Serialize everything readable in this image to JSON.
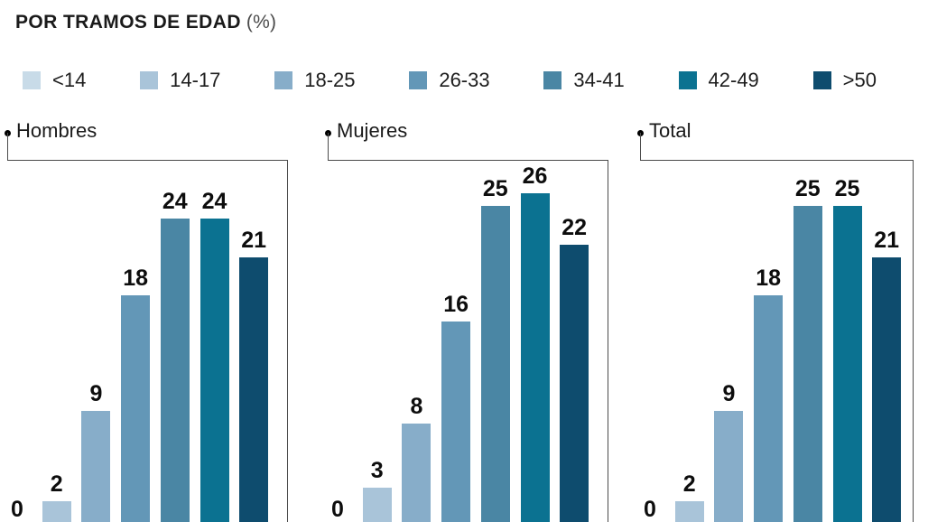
{
  "title": {
    "main": "POR TRAMOS DE EDAD",
    "suffix": " (%)"
  },
  "legend": [
    {
      "label": "<14",
      "color": "#c8dbe8"
    },
    {
      "label": "14-17",
      "color": "#a9c4d9"
    },
    {
      "label": "18-25",
      "color": "#87adc9"
    },
    {
      "label": "26-33",
      "color": "#6397b7"
    },
    {
      "label": "34-41",
      "color": "#4a86a4"
    },
    {
      "label": "42-49",
      "color": "#0b7291"
    },
    {
      "label": ">50",
      "color": "#0e4c6e"
    }
  ],
  "chart_data": {
    "type": "bar",
    "title": "POR TRAMOS DE EDAD (%)",
    "unit": "%",
    "categories": [
      "<14",
      "14-17",
      "18-25",
      "26-33",
      "34-41",
      "42-49",
      ">50"
    ],
    "series": [
      {
        "name": "Hombres",
        "values": [
          0,
          2,
          9,
          18,
          24,
          24,
          21
        ]
      },
      {
        "name": "Mujeres",
        "values": [
          0,
          3,
          8,
          16,
          25,
          26,
          22
        ]
      },
      {
        "name": "Total",
        "values": [
          0,
          2,
          9,
          18,
          25,
          25,
          21
        ]
      }
    ],
    "value_labels_shown": true,
    "axes_shown": false,
    "ylim": [
      0,
      30
    ],
    "legend_position": "top",
    "panel_layout": "three-small-multiples",
    "colors": [
      "#c8dbe8",
      "#a9c4d9",
      "#87adc9",
      "#6397b7",
      "#4a86a4",
      "#0b7291",
      "#0e4c6e"
    ],
    "text_color": "#1a1a1a",
    "frame_line_color": "#4b4b4b"
  }
}
